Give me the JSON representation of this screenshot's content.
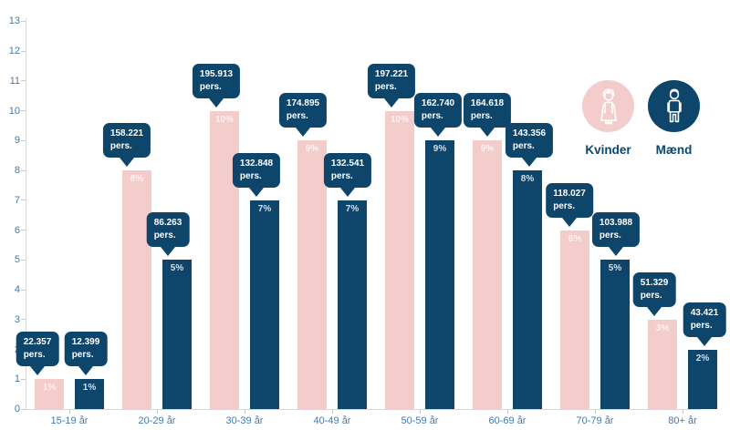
{
  "colors": {
    "navy": "#0E466B",
    "pink": "#F2CDCB",
    "axis_label": "#4578A6",
    "axis_line": "#D8D8D8"
  },
  "chart_data": {
    "type": "bar",
    "title": "",
    "xlabel": "",
    "ylabel": "",
    "ylim": [
      0,
      13
    ],
    "yticks": [
      0,
      1,
      2,
      3,
      4,
      5,
      6,
      7,
      8,
      9,
      10,
      11,
      12,
      13
    ],
    "grid": false,
    "legend_position": "top-right",
    "categories": [
      "15-19 år",
      "20-29 år",
      "30-39 år",
      "40-49 år",
      "50-59 år",
      "60-69 år",
      "70-79 år",
      "80+ år"
    ],
    "unit_suffix": "pers.",
    "series": [
      {
        "name": "Kvinder",
        "color": "#F2CDCB",
        "pct": [
          1,
          8,
          10,
          9,
          10,
          9,
          6,
          3
        ],
        "pct_labels": [
          "1%",
          "8%",
          "10%",
          "9%",
          "10%",
          "9%",
          "6%",
          "3%"
        ],
        "persons": [
          "22.357",
          "158.221",
          "195.913",
          "174.895",
          "197.221",
          "164.618",
          "118.027",
          "51.329"
        ]
      },
      {
        "name": "Mænd",
        "color": "#0E466B",
        "pct": [
          1,
          5,
          7,
          7,
          9,
          8,
          5,
          2
        ],
        "pct_labels": [
          "1%",
          "5%",
          "7%",
          "7%",
          "9%",
          "8%",
          "5%",
          "2%"
        ],
        "persons": [
          "12.399",
          "86.263",
          "132.848",
          "132.541",
          "162.740",
          "143.356",
          "103.988",
          "43.421"
        ]
      }
    ],
    "legend": {
      "items": [
        {
          "label": "Kvinder",
          "icon": "woman-icon",
          "color": "#F2CDCB"
        },
        {
          "label": "Mænd",
          "icon": "man-icon",
          "color": "#0E466B"
        }
      ]
    }
  }
}
